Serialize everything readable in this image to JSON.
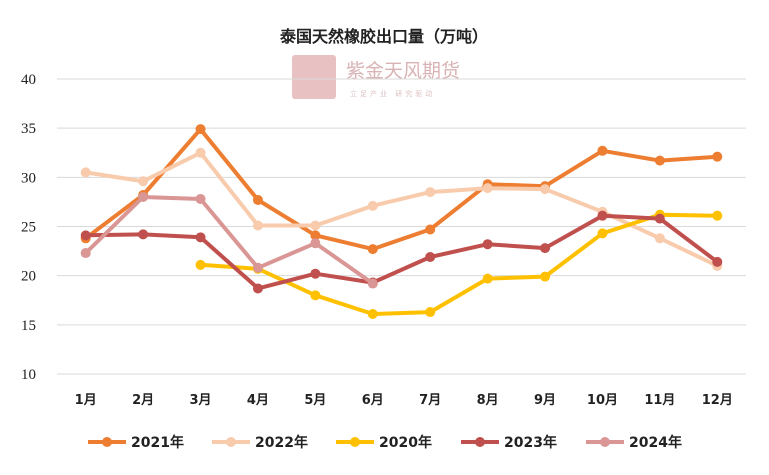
{
  "chart_data": {
    "type": "line",
    "title": "泰国天然橡胶出口量（万吨）",
    "categories": [
      "1月",
      "2月",
      "3月",
      "4月",
      "5月",
      "6月",
      "7月",
      "8月",
      "9月",
      "10月",
      "11月",
      "12月"
    ],
    "ylim": [
      10,
      40
    ],
    "yticks": [
      10,
      15,
      20,
      25,
      30,
      35,
      40
    ],
    "grid": true,
    "legend": "bottom",
    "series": [
      {
        "name": "2021年",
        "color": "#ed7d31",
        "values": [
          23.8,
          28.2,
          34.9,
          27.7,
          24.1,
          22.7,
          24.7,
          29.3,
          29.1,
          32.7,
          31.7,
          32.1
        ]
      },
      {
        "name": "2022年",
        "color": "#f8cbad",
        "values": [
          30.5,
          29.6,
          32.5,
          25.1,
          25.1,
          27.1,
          28.5,
          28.9,
          28.8,
          26.5,
          23.8,
          21.0
        ]
      },
      {
        "name": "2020年",
        "color": "#ffc000",
        "values": [
          null,
          null,
          21.1,
          20.7,
          18.0,
          16.1,
          16.3,
          19.7,
          19.9,
          24.3,
          26.2,
          26.1
        ]
      },
      {
        "name": "2023年",
        "color": "#c0504d",
        "values": [
          24.1,
          24.2,
          23.9,
          18.7,
          20.2,
          19.3,
          21.9,
          23.2,
          22.8,
          26.1,
          25.8,
          21.4
        ]
      },
      {
        "name": "2024年",
        "color": "#d99694",
        "values": [
          22.3,
          28.0,
          27.8,
          20.8,
          23.3,
          19.2,
          null,
          null,
          null,
          null,
          null,
          null
        ]
      }
    ]
  },
  "watermark": {
    "logo_text": "紫金天风",
    "company": "紫金天风期货",
    "tagline": "立足产业 研究驱动"
  }
}
